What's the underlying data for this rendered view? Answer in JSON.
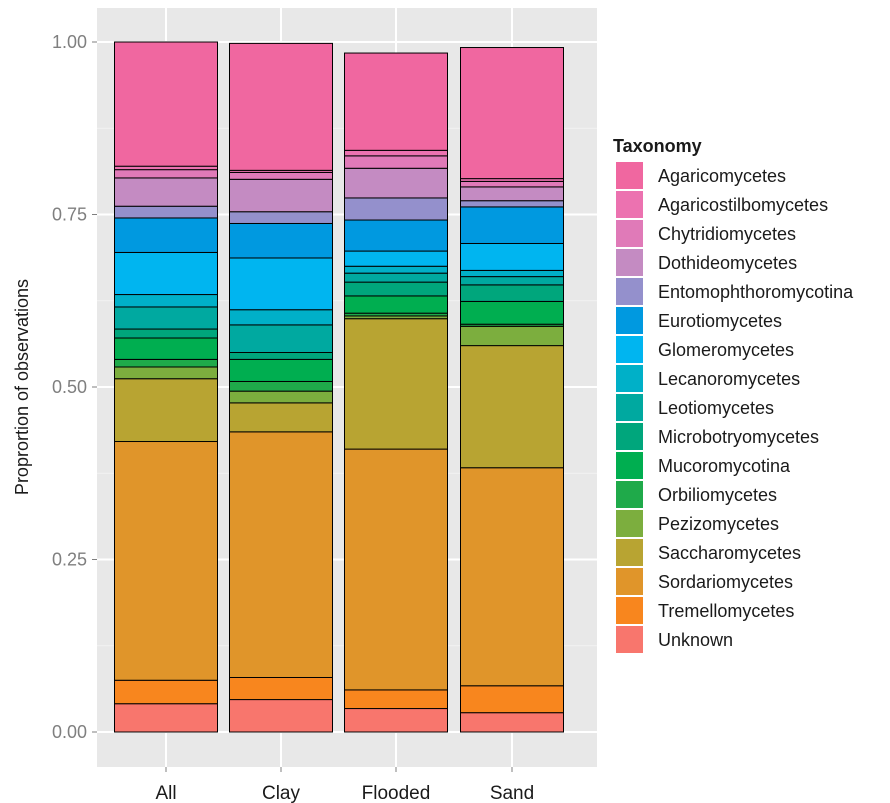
{
  "chart_data": {
    "type": "bar",
    "stacked": true,
    "categories": [
      "All",
      "Clay",
      "Flooded",
      "Sand"
    ],
    "ylabel": "Proprortion of observations",
    "xlabel": "",
    "ylim": [
      0,
      1
    ],
    "yticks": [
      "0.00",
      "0.25",
      "0.50",
      "0.75",
      "1.00"
    ],
    "ytick_values": [
      0,
      0.25,
      0.5,
      0.75,
      1.0
    ],
    "grid": true,
    "legend_position": "right",
    "legend_title": "Taxonomy",
    "series": [
      {
        "name": "Unknown",
        "color": "#F8766D",
        "values": [
          0.041,
          0.047,
          0.034,
          0.028
        ]
      },
      {
        "name": "Tremellomycetes",
        "color": "#F8861E",
        "values": [
          0.034,
          0.032,
          0.027,
          0.039
        ]
      },
      {
        "name": "Sordariomycetes",
        "color": "#E0952A",
        "values": [
          0.346,
          0.356,
          0.349,
          0.316
        ]
      },
      {
        "name": "Saccharomycetes",
        "color": "#B8A432",
        "values": [
          0.091,
          0.042,
          0.189,
          0.177
        ]
      },
      {
        "name": "Pezizomycetes",
        "color": "#7CAE3E",
        "values": [
          0.017,
          0.017,
          0.004,
          0.028
        ]
      },
      {
        "name": "Orbiliomycetes",
        "color": "#1FAA4A",
        "values": [
          0.011,
          0.014,
          0.004,
          0.003
        ]
      },
      {
        "name": "Mucoromycotina",
        "color": "#00AE50",
        "values": [
          0.031,
          0.032,
          0.025,
          0.033
        ]
      },
      {
        "name": "Microbotryomycetes",
        "color": "#00A67C",
        "values": [
          0.013,
          0.01,
          0.02,
          0.024
        ]
      },
      {
        "name": "Leotiomycetes",
        "color": "#00A9A0",
        "values": [
          0.032,
          0.04,
          0.013,
          0.012
        ]
      },
      {
        "name": "Lecanoromycetes",
        "color": "#00B0C8",
        "values": [
          0.018,
          0.022,
          0.01,
          0.009
        ]
      },
      {
        "name": "Glomeromycetes",
        "color": "#00B5F0",
        "values": [
          0.061,
          0.075,
          0.022,
          0.039
        ]
      },
      {
        "name": "Eurotiomycetes",
        "color": "#0099E0",
        "values": [
          0.05,
          0.05,
          0.045,
          0.053
        ]
      },
      {
        "name": "Entomophthoromycotina",
        "color": "#9490CC",
        "values": [
          0.017,
          0.017,
          0.032,
          0.009
        ]
      },
      {
        "name": "Dothideomycetes",
        "color": "#C48BC2",
        "values": [
          0.041,
          0.047,
          0.043,
          0.02
        ]
      },
      {
        "name": "Chytridiomycetes",
        "color": "#E07AB8",
        "values": [
          0.012,
          0.01,
          0.018,
          0.008
        ]
      },
      {
        "name": "Agaricostilbomycetes",
        "color": "#EC72B0",
        "values": [
          0.005,
          0.003,
          0.008,
          0.004
        ]
      },
      {
        "name": "Agaricomycetes",
        "color": "#F067A0",
        "values": [
          0.18,
          0.184,
          0.141,
          0.19
        ]
      }
    ]
  }
}
